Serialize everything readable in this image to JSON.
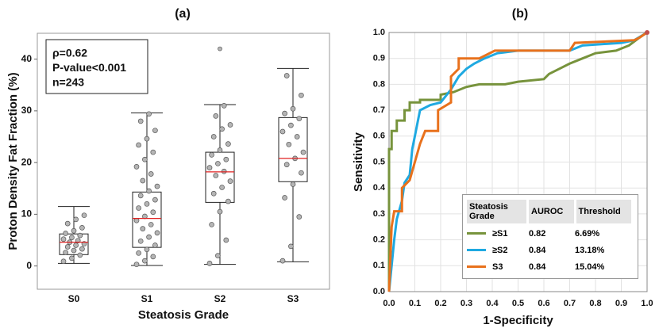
{
  "chart_data": [
    {
      "type": "box",
      "title": "(a)",
      "x_label": "Steatosis Grade",
      "y_label": "Proton Density Fat Fraction (%)",
      "categories": [
        "S0",
        "S1",
        "S2",
        "S3"
      ],
      "boxes": [
        {
          "min": 0.5,
          "q1": 2.2,
          "median": 4.6,
          "q3": 6.2,
          "max": 11.5,
          "outliers": []
        },
        {
          "min": 0.1,
          "q1": 3.6,
          "median": 9.2,
          "q3": 14.3,
          "max": 29.6,
          "outliers": []
        },
        {
          "min": 0.3,
          "q1": 12.3,
          "median": 18.2,
          "q3": 22.0,
          "max": 31.2,
          "outliers": [
            42
          ]
        },
        {
          "min": 0.8,
          "q1": 16.3,
          "median": 20.8,
          "q3": 28.7,
          "max": 38.2,
          "outliers": []
        }
      ],
      "points": [
        [
          0.9,
          1.5,
          2.1,
          2.6,
          3.0,
          3.3,
          3.7,
          4.0,
          4.3,
          4.6,
          4.9,
          5.2,
          5.5,
          5.9,
          6.3,
          6.8,
          7.4,
          8.2,
          9.0,
          9.8
        ],
        [
          0.3,
          1.0,
          1.8,
          2.5,
          3.2,
          4.0,
          4.8,
          5.6,
          6.4,
          7.2,
          8.0,
          8.8,
          9.6,
          10.4,
          11.2,
          12.0,
          12.8,
          13.6,
          14.5,
          15.4,
          16.5,
          17.8,
          19.2,
          20.6,
          22.0,
          23.4,
          24.6,
          26.2,
          28.0,
          29.4
        ],
        [
          0.5,
          2.0,
          5.0,
          8.0,
          10.5,
          12.5,
          14.0,
          15.2,
          16.4,
          17.5,
          18.3,
          19.0,
          19.8,
          20.6,
          21.5,
          22.4,
          23.6,
          25.0,
          26.5,
          27.3,
          29.0,
          31.0
        ],
        [
          1.0,
          3.8,
          9.5,
          13.2,
          15.8,
          18.0,
          19.6,
          20.8,
          22.0,
          23.5,
          25.0,
          26.0,
          27.2,
          28.5,
          29.5,
          30.4,
          33.0,
          36.8
        ]
      ],
      "ylim": [
        -4.5,
        45
      ],
      "yticks": [
        0,
        10,
        20,
        30,
        40
      ],
      "annotation": [
        "ρ=0.62",
        "P-value<0.001",
        "n=243"
      ],
      "median_color": "#e02020",
      "point_color": "#b5b5b5"
    },
    {
      "type": "line",
      "title": "(b)",
      "x_label": "1-Specificity",
      "y_label": "Sensitivity",
      "xlim": [
        0,
        1
      ],
      "ylim": [
        0,
        1
      ],
      "xticks": [
        {
          "value": 0,
          "label": "0.0"
        },
        0.1,
        0.2,
        0.3,
        0.4,
        0.5,
        0.6,
        0.7,
        0.8,
        0.9,
        {
          "value": 1,
          "label": "1.0"
        }
      ],
      "yticks": [
        {
          "value": 0,
          "label": "0.0"
        },
        0.1,
        0.2,
        0.3,
        0.4,
        0.5,
        0.6,
        0.7,
        0.8,
        0.9,
        {
          "value": 1,
          "label": "1.0"
        }
      ],
      "grid": true,
      "table_header": [
        "Steatosis Grade",
        "AUROC",
        "Threshold"
      ],
      "series": [
        {
          "name": "≥S1",
          "color": "#77933c",
          "auroc": 0.82,
          "threshold": "6.69%",
          "x": [
            0,
            0,
            0.01,
            0.01,
            0.03,
            0.03,
            0.06,
            0.06,
            0.08,
            0.08,
            0.12,
            0.12,
            0.2,
            0.2,
            0.25,
            0.3,
            0.35,
            0.45,
            0.5,
            0.6,
            0.62,
            0.66,
            0.7,
            0.75,
            0.8,
            0.88,
            0.93,
            0.97,
            1
          ],
          "y": [
            0,
            0.55,
            0.55,
            0.62,
            0.62,
            0.66,
            0.66,
            0.7,
            0.7,
            0.73,
            0.73,
            0.74,
            0.74,
            0.76,
            0.77,
            0.79,
            0.8,
            0.8,
            0.81,
            0.82,
            0.84,
            0.86,
            0.88,
            0.9,
            0.92,
            0.93,
            0.95,
            0.98,
            1
          ]
        },
        {
          "name": "≥S2",
          "color": "#1fa9e1",
          "auroc": 0.84,
          "threshold": "13.18%",
          "x": [
            0,
            0.01,
            0.02,
            0.03,
            0.05,
            0.06,
            0.08,
            0.09,
            0.1,
            0.11,
            0.12,
            0.16,
            0.2,
            0.24,
            0.27,
            0.3,
            0.33,
            0.37,
            0.42,
            0.5,
            0.7,
            0.75,
            0.9,
            0.95,
            1
          ],
          "y": [
            0,
            0.1,
            0.2,
            0.28,
            0.35,
            0.42,
            0.45,
            0.55,
            0.6,
            0.65,
            0.7,
            0.72,
            0.73,
            0.78,
            0.83,
            0.86,
            0.88,
            0.9,
            0.92,
            0.93,
            0.93,
            0.95,
            0.96,
            0.97,
            1
          ]
        },
        {
          "name": "S3",
          "color": "#e8711c",
          "auroc": 0.84,
          "threshold": "15.04%",
          "x": [
            0,
            0.01,
            0.02,
            0.05,
            0.05,
            0.08,
            0.1,
            0.12,
            0.14,
            0.19,
            0.19,
            0.24,
            0.24,
            0.27,
            0.27,
            0.35,
            0.41,
            0.7,
            0.72,
            0.95,
            0.97,
            1
          ],
          "y": [
            0,
            0.25,
            0.31,
            0.31,
            0.4,
            0.43,
            0.5,
            0.57,
            0.62,
            0.62,
            0.7,
            0.73,
            0.83,
            0.86,
            0.9,
            0.9,
            0.93,
            0.93,
            0.96,
            0.97,
            0.98,
            1
          ]
        }
      ]
    }
  ]
}
